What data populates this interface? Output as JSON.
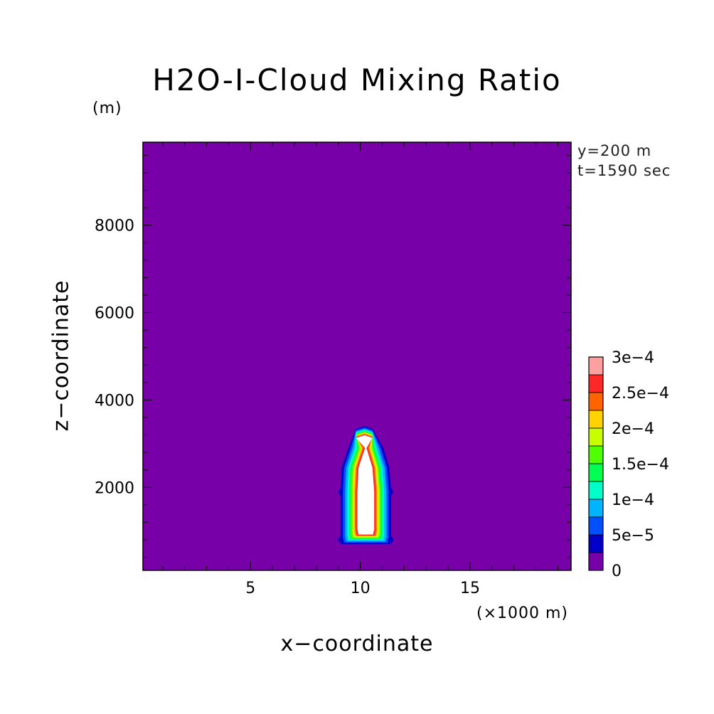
{
  "chart_data": {
    "type": "contour",
    "title": "H2O-I-Cloud Mixing Ratio",
    "xlabel": "x−coordinate",
    "xunit": "(×1000 m)",
    "ylabel": "z−coordinate",
    "yunit": "(m)",
    "annotations": [
      "y=200 m",
      "t=1590 sec"
    ],
    "xlim": [
      0.1,
      19.6
    ],
    "ylim": [
      100,
      9900
    ],
    "xticks": [
      5,
      10,
      15
    ],
    "xtick_labels": [
      "5",
      "10",
      "15"
    ],
    "yticks": [
      2000,
      4000,
      6000,
      8000
    ],
    "ytick_labels": [
      "2000",
      "4000",
      "6000",
      "8000"
    ],
    "background_color": "#7800a8",
    "colorbar": {
      "levels": [
        0,
        5e-05,
        0.0001,
        0.00015,
        0.0002,
        0.00025,
        0.0003
      ],
      "labels": [
        "0",
        "5e−5",
        "1e−4",
        "1.5e−4",
        "2e−4",
        "2.5e−4",
        "3e−4"
      ],
      "colors": [
        "#7800a8",
        "#0000c8",
        "#0050ff",
        "#00b4ff",
        "#00ffc8",
        "#00ff50",
        "#50ff00",
        "#c8ff00",
        "#ffd200",
        "#ff6400",
        "#ff2828",
        "#ffa0a0"
      ]
    },
    "cloud_core": {
      "x_range_km": [
        9.1,
        11.4
      ],
      "z_range_m": [
        700,
        3400
      ],
      "peak_x_km": 10.2,
      "peak_z_m": 3400,
      "interior": "above 3e−4"
    }
  }
}
